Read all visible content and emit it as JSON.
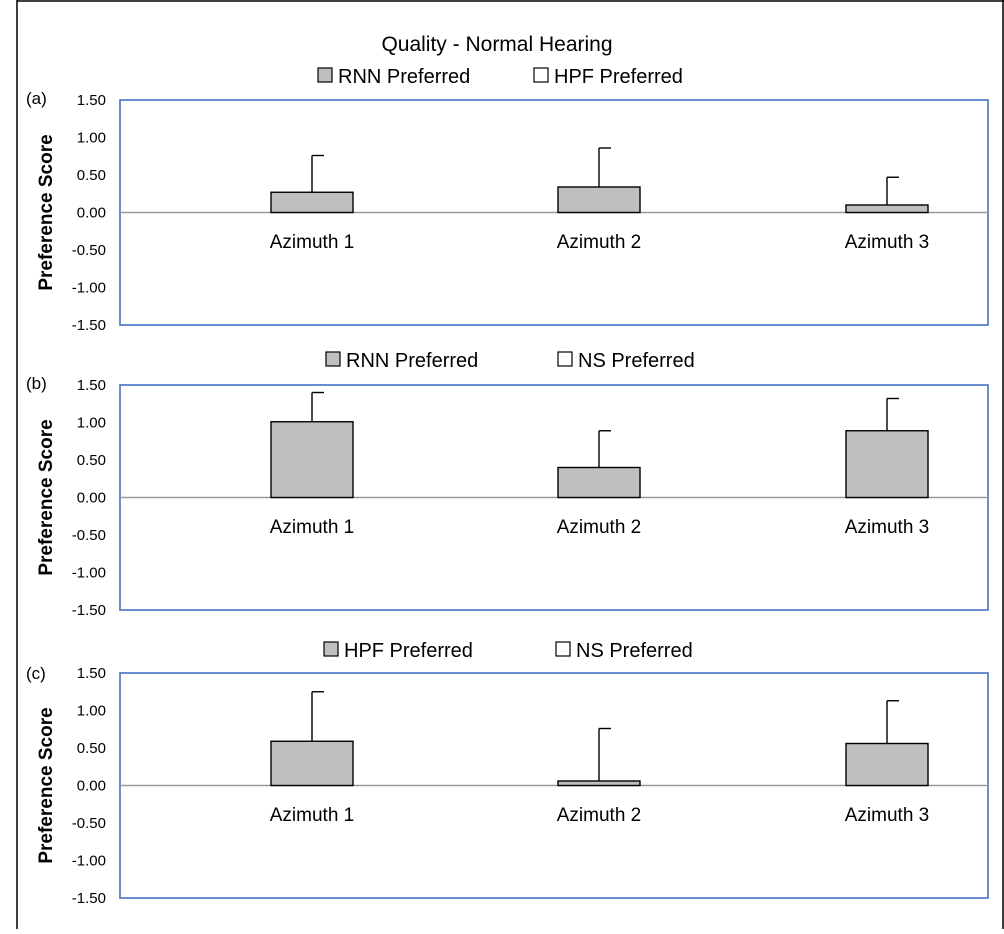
{
  "figure": {
    "title": "Quality - Normal Hearing"
  },
  "chart_data": [
    {
      "type": "bar",
      "panel_label": "(a)",
      "legend": [
        "RNN Preferred",
        "HPF Preferred"
      ],
      "legend_colors": [
        "#bfbfbf",
        "#ffffff"
      ],
      "ylabel": "Preference Score",
      "yticks": [
        "1.50",
        "1.00",
        "0.50",
        "0.00",
        "-0.50",
        "-1.00",
        "-1.50"
      ],
      "ylim": [
        -1.5,
        1.5
      ],
      "categories": [
        "Azimuth 1",
        "Azimuth 2",
        "Azimuth 3"
      ],
      "values": [
        0.27,
        0.34,
        0.1
      ],
      "errors": [
        0.49,
        0.52,
        0.37
      ]
    },
    {
      "type": "bar",
      "panel_label": "(b)",
      "legend": [
        "RNN Preferred",
        "NS Preferred"
      ],
      "legend_colors": [
        "#bfbfbf",
        "#ffffff"
      ],
      "ylabel": "Preference Score",
      "yticks": [
        "1.50",
        "1.00",
        "0.50",
        "0.00",
        "-0.50",
        "-1.00",
        "-1.50"
      ],
      "ylim": [
        -1.5,
        1.5
      ],
      "categories": [
        "Azimuth 1",
        "Azimuth 2",
        "Azimuth 3"
      ],
      "values": [
        1.01,
        0.4,
        0.89
      ],
      "errors": [
        0.39,
        0.49,
        0.43
      ]
    },
    {
      "type": "bar",
      "panel_label": "(c)",
      "legend": [
        "HPF Preferred",
        "NS Preferred"
      ],
      "legend_colors": [
        "#bfbfbf",
        "#ffffff"
      ],
      "ylabel": "Preference Score",
      "yticks": [
        "1.50",
        "1.00",
        "0.50",
        "0.00",
        "-0.50",
        "-1.00",
        "-1.50"
      ],
      "ylim": [
        -1.5,
        1.5
      ],
      "categories": [
        "Azimuth 1",
        "Azimuth 2",
        "Azimuth 3"
      ],
      "values": [
        0.59,
        0.06,
        0.56
      ],
      "errors": [
        0.66,
        0.7,
        0.57
      ]
    }
  ],
  "colors": {
    "bar_fill": "#bfbfbf",
    "bar_stroke": "#000000",
    "plot_border": "#4472c4",
    "baseline": "#999999"
  }
}
